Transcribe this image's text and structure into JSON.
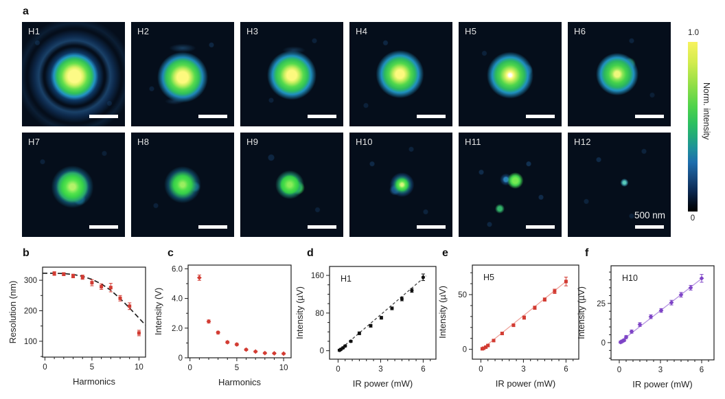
{
  "panel_labels": {
    "a": "a",
    "b": "b",
    "c": "c",
    "d": "d",
    "e": "e",
    "f": "f"
  },
  "panel_a": {
    "tiles": [
      {
        "id": "H1"
      },
      {
        "id": "H2"
      },
      {
        "id": "H3"
      },
      {
        "id": "H4"
      },
      {
        "id": "H5"
      },
      {
        "id": "H6"
      },
      {
        "id": "H7"
      },
      {
        "id": "H8"
      },
      {
        "id": "H9"
      },
      {
        "id": "H10"
      },
      {
        "id": "H11"
      },
      {
        "id": "H12"
      }
    ],
    "scalebar_label": "500 nm",
    "colorbar": {
      "max_label": "1.0",
      "min_label": "0",
      "title": "Norm. intensity",
      "colors_top_to_bottom": [
        "#f7f25e",
        "#93df46",
        "#2cc060",
        "#1e8f9b",
        "#1d6dac",
        "#17497e",
        "#0b2850",
        "#000000"
      ]
    }
  },
  "chart_data": [
    {
      "id": "b",
      "type": "scatter",
      "annotation": "",
      "xlabel": "Harmonics",
      "ylabel": "Resolution (nm)",
      "xlim": [
        -0.25,
        10.7
      ],
      "ylim": [
        48,
        343
      ],
      "xticks": [
        0,
        5,
        10
      ],
      "xtick_labels": [
        "0",
        "5",
        "10"
      ],
      "xminor_step": 1,
      "yticks": [
        100,
        200,
        300
      ],
      "ytick_labels": [
        "100",
        "200",
        "300"
      ],
      "yminor_step": 50,
      "series": [
        {
          "name": "resolution",
          "marker": "square",
          "color": "#d23b32",
          "x": [
            1,
            2,
            3,
            4,
            5,
            6,
            7,
            8,
            9,
            10
          ],
          "y": [
            322,
            320,
            314,
            310,
            292,
            279,
            276,
            241,
            215,
            127
          ],
          "yerr": [
            6,
            5,
            6,
            7,
            10,
            9,
            14,
            9,
            11,
            9
          ]
        }
      ],
      "curve": {
        "style": "dashed",
        "color": "#222222",
        "x": [
          -0.25,
          1,
          2,
          3,
          4,
          5,
          6,
          7,
          8,
          9,
          10,
          10.7
        ],
        "y": [
          323,
          323,
          322,
          319,
          313,
          303,
          288,
          267,
          240,
          209,
          176,
          153
        ]
      }
    },
    {
      "id": "c",
      "type": "scatter",
      "annotation": "",
      "xlabel": "Harmonics",
      "ylabel": "Intensity (V)",
      "xlim": [
        -0.2,
        10.8
      ],
      "ylim": [
        0,
        6.25
      ],
      "xticks": [
        0,
        5,
        10
      ],
      "xtick_labels": [
        "0",
        "5",
        "10"
      ],
      "xminor_step": 1,
      "yticks": [
        0,
        2,
        4,
        6
      ],
      "ytick_labels": [
        "0",
        "2.0",
        "4.0",
        "6.0"
      ],
      "yminor_step": 1,
      "series": [
        {
          "name": "intensity",
          "marker": "diamond",
          "color": "#d23b32",
          "x": [
            1,
            2,
            3,
            4,
            5,
            6,
            7,
            8,
            9,
            10
          ],
          "y": [
            5.4,
            2.45,
            1.7,
            1.05,
            0.9,
            0.55,
            0.42,
            0.32,
            0.3,
            0.28
          ],
          "yerr": [
            0.18,
            0.1,
            0.09,
            0.08,
            0.08,
            0.06,
            0.05,
            0.05,
            0.05,
            0.05
          ]
        }
      ]
    },
    {
      "id": "d",
      "type": "scatter",
      "annotation": "H1",
      "xlabel": "IR power (mW)",
      "ylabel": "Intensity (µV)",
      "xlim": [
        -0.6,
        6.9
      ],
      "ylim": [
        -18,
        179
      ],
      "xticks": [
        0,
        3,
        6
      ],
      "xtick_labels": [
        "0",
        "3",
        "6"
      ],
      "xminor_step": 0.5,
      "yticks": [
        0,
        80,
        160
      ],
      "ytick_labels": [
        "0",
        "80",
        "160"
      ],
      "yminor_step": 20,
      "fit": {
        "style": "dashed",
        "color": "#444444",
        "x": [
          0,
          6.2
        ],
        "y": [
          -1,
          159
        ]
      },
      "series": [
        {
          "name": "H1 power dependence",
          "marker": "circle",
          "color": "#111111",
          "x": [
            0.1,
            0.2,
            0.35,
            0.5,
            0.9,
            1.5,
            2.3,
            3.05,
            3.8,
            4.5,
            5.2,
            6.0
          ],
          "y": [
            1,
            3,
            6,
            10,
            20,
            37,
            53,
            70,
            90,
            110,
            128,
            156
          ],
          "yerr": [
            2,
            2,
            2,
            2,
            2,
            3,
            3,
            3,
            3,
            4,
            4,
            7
          ]
        }
      ]
    },
    {
      "id": "e",
      "type": "scatter",
      "annotation": "H5",
      "xlabel": "IR power (mW)",
      "ylabel": "Intensity (µV)",
      "xlim": [
        -0.6,
        6.9
      ],
      "ylim": [
        -9,
        77
      ],
      "xticks": [
        0,
        3,
        6
      ],
      "xtick_labels": [
        "0",
        "3",
        "6"
      ],
      "xminor_step": 0.5,
      "yticks": [
        0,
        50
      ],
      "ytick_labels": [
        "0",
        "50"
      ],
      "yminor_step": 10,
      "fit": {
        "style": "solid",
        "color": "#f0a29a",
        "x": [
          0,
          6.1
        ],
        "y": [
          -0.5,
          63
        ]
      },
      "series": [
        {
          "name": "H5 power dependence",
          "marker": "square",
          "color": "#d23b32",
          "x": [
            0.1,
            0.2,
            0.35,
            0.5,
            0.9,
            1.5,
            2.3,
            3.05,
            3.8,
            4.5,
            5.2,
            6.0
          ],
          "y": [
            0.5,
            1,
            2,
            3.5,
            8,
            14.5,
            22,
            29,
            38,
            45.5,
            53,
            62
          ],
          "yerr": [
            0.8,
            0.8,
            0.8,
            0.8,
            1,
            1.2,
            1.2,
            1.5,
            1.5,
            1.5,
            2,
            4
          ]
        }
      ]
    },
    {
      "id": "f",
      "type": "scatter",
      "annotation": "H10",
      "xlabel": "IR power (mW)",
      "ylabel": "Intensity (µV)",
      "xlim": [
        -0.6,
        6.9
      ],
      "ylim": [
        -11,
        49
      ],
      "xticks": [
        0,
        3,
        6
      ],
      "xtick_labels": [
        "0",
        "3",
        "6"
      ],
      "xminor_step": 0.5,
      "yticks": [
        0,
        25
      ],
      "ytick_labels": [
        "0",
        "25"
      ],
      "yminor_step": 5,
      "fit": {
        "style": "solid",
        "color": "#b592e2",
        "x": [
          0,
          6.1
        ],
        "y": [
          0,
          41.5
        ]
      },
      "series": [
        {
          "name": "H10 power dependence",
          "marker": "diamond",
          "color": "#7e44c6",
          "x": [
            0.1,
            0.2,
            0.35,
            0.5,
            0.9,
            1.5,
            2.3,
            3.05,
            3.8,
            4.5,
            5.2,
            6.0
          ],
          "y": [
            0.3,
            0.8,
            1.5,
            3.5,
            7,
            11.5,
            16.5,
            20.5,
            25.5,
            30.5,
            35,
            41
          ],
          "yerr": [
            0.8,
            0.8,
            0.8,
            1,
            1,
            1.2,
            1.2,
            1.2,
            1.5,
            1.5,
            1.5,
            2.5
          ]
        }
      ]
    }
  ]
}
